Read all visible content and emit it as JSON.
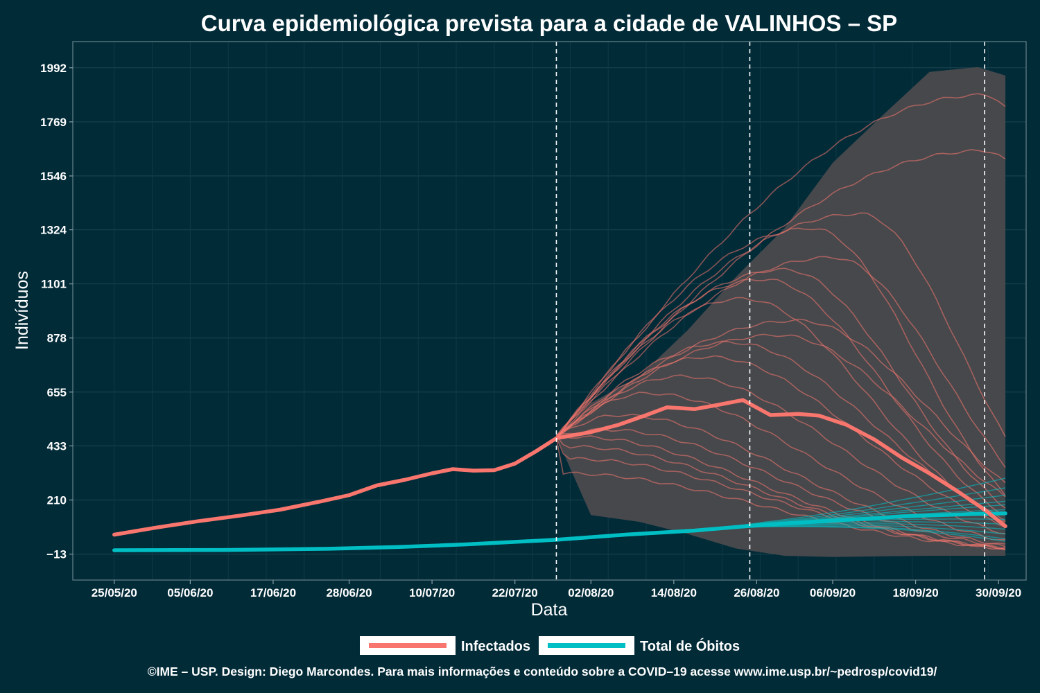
{
  "chart_data": {
    "type": "line",
    "title": "Curva epidemiológica prevista para a cidade de VALINHOS – SP",
    "xlabel": "Data",
    "ylabel": "Indivíduos",
    "caption": "©IME – USP. Design: Diego Marcondes. Para mais informações e conteúdo sobre a COVID–19 acesse www.ime.usp.br/~pedrosp/covid19/",
    "x_range": [
      "2020-05-19",
      "2020-10-04"
    ],
    "ylim": [
      -120,
      2100
    ],
    "x_ticks": [
      {
        "date": "2020-05-25",
        "label": "25/05/20"
      },
      {
        "date": "2020-06-05",
        "label": "05/06/20"
      },
      {
        "date": "2020-06-17",
        "label": "17/06/20"
      },
      {
        "date": "2020-06-28",
        "label": "28/06/20"
      },
      {
        "date": "2020-07-10",
        "label": "10/07/20"
      },
      {
        "date": "2020-07-22",
        "label": "22/07/20"
      },
      {
        "date": "2020-08-02",
        "label": "02/08/20"
      },
      {
        "date": "2020-08-14",
        "label": "14/08/20"
      },
      {
        "date": "2020-08-26",
        "label": "26/08/20"
      },
      {
        "date": "2020-09-06",
        "label": "06/09/20"
      },
      {
        "date": "2020-09-18",
        "label": "18/09/20"
      },
      {
        "date": "2020-09-30",
        "label": "30/09/20"
      }
    ],
    "y_ticks": [
      {
        "value": -13,
        "label": "−13"
      },
      {
        "value": 210,
        "label": "210"
      },
      {
        "value": 433,
        "label": "433"
      },
      {
        "value": 655,
        "label": "655"
      },
      {
        "value": 878,
        "label": "878"
      },
      {
        "value": 1101,
        "label": "1101"
      },
      {
        "value": 1324,
        "label": "1324"
      },
      {
        "value": 1546,
        "label": "1546"
      },
      {
        "value": 1769,
        "label": "1769"
      },
      {
        "value": 1992,
        "label": "1992"
      }
    ],
    "vlines": [
      "2020-07-28",
      "2020-08-25",
      "2020-09-28"
    ],
    "legend_position": "bottom",
    "grid": true,
    "series": [
      {
        "name": "Infectados",
        "color": "#f8766d",
        "points": [
          [
            "2020-05-25",
            67
          ],
          [
            "2020-05-31",
            96
          ],
          [
            "2020-06-06",
            122
          ],
          [
            "2020-06-12",
            145
          ],
          [
            "2020-06-18",
            170
          ],
          [
            "2020-06-24",
            205
          ],
          [
            "2020-06-28",
            230
          ],
          [
            "2020-07-02",
            270
          ],
          [
            "2020-07-06",
            293
          ],
          [
            "2020-07-10",
            320
          ],
          [
            "2020-07-13",
            337
          ],
          [
            "2020-07-16",
            331
          ],
          [
            "2020-07-19",
            333
          ],
          [
            "2020-07-22",
            360
          ],
          [
            "2020-07-25",
            410
          ],
          [
            "2020-07-28",
            465
          ],
          [
            "2020-08-02",
            490
          ],
          [
            "2020-08-06",
            520
          ],
          [
            "2020-08-10",
            560
          ],
          [
            "2020-08-13",
            592
          ],
          [
            "2020-08-17",
            585
          ],
          [
            "2020-08-20",
            600
          ],
          [
            "2020-08-24",
            622
          ],
          [
            "2020-08-28",
            560
          ],
          [
            "2020-09-01",
            565
          ],
          [
            "2020-09-04",
            558
          ],
          [
            "2020-09-08",
            520
          ],
          [
            "2020-09-12",
            460
          ],
          [
            "2020-09-16",
            385
          ],
          [
            "2020-09-20",
            320
          ],
          [
            "2020-09-24",
            247
          ],
          [
            "2020-09-28",
            170
          ],
          [
            "2020-10-01",
            102
          ]
        ]
      },
      {
        "name": "Total de Óbitos",
        "color": "#00bfc4",
        "points": [
          [
            "2020-05-25",
            3
          ],
          [
            "2020-06-10",
            4
          ],
          [
            "2020-06-25",
            9
          ],
          [
            "2020-07-05",
            16
          ],
          [
            "2020-07-15",
            27
          ],
          [
            "2020-07-28",
            46
          ],
          [
            "2020-08-07",
            67
          ],
          [
            "2020-08-17",
            84
          ],
          [
            "2020-08-27",
            108
          ],
          [
            "2020-09-06",
            125
          ],
          [
            "2020-09-16",
            142
          ],
          [
            "2020-09-26",
            152
          ],
          [
            "2020-10-01",
            155
          ]
        ]
      }
    ],
    "scenarios_infectados": {
      "band_upper": [
        [
          "2020-07-28",
          470
        ],
        [
          "2020-08-02",
          610
        ],
        [
          "2020-08-09",
          720
        ],
        [
          "2020-08-16",
          910
        ],
        [
          "2020-08-23",
          1130
        ],
        [
          "2020-08-30",
          1330
        ],
        [
          "2020-09-06",
          1600
        ],
        [
          "2020-09-13",
          1790
        ],
        [
          "2020-09-20",
          1975
        ],
        [
          "2020-09-27",
          1995
        ],
        [
          "2020-10-01",
          1960
        ]
      ],
      "band_lower": [
        [
          "2020-07-28",
          470
        ],
        [
          "2020-08-02",
          148
        ],
        [
          "2020-08-09",
          120
        ],
        [
          "2020-08-16",
          70
        ],
        [
          "2020-08-23",
          10
        ],
        [
          "2020-08-30",
          -20
        ],
        [
          "2020-09-06",
          -25
        ],
        [
          "2020-09-13",
          -22
        ],
        [
          "2020-09-20",
          -20
        ],
        [
          "2020-09-27",
          -20
        ],
        [
          "2020-10-01",
          -20
        ]
      ],
      "peaks": [
        [
          "2020-09-28",
          1880
        ],
        [
          "2020-09-28",
          1650
        ],
        [
          "2020-09-10",
          1390
        ],
        [
          "2020-09-03",
          1330
        ],
        [
          "2020-09-06",
          1210
        ],
        [
          "2020-08-30",
          1160
        ],
        [
          "2020-08-27",
          1120
        ],
        [
          "2020-08-24",
          1040
        ],
        [
          "2020-09-01",
          950
        ],
        [
          "2020-08-29",
          890
        ],
        [
          "2020-08-22",
          860
        ],
        [
          "2020-08-19",
          800
        ],
        [
          "2020-08-15",
          720
        ],
        [
          "2020-08-10",
          650
        ],
        [
          "2020-08-06",
          560
        ],
        [
          "2020-08-04",
          500
        ],
        [
          "2020-07-31",
          470
        ],
        [
          "2020-07-30",
          430
        ],
        [
          "2020-07-30",
          380
        ],
        [
          "2020-07-29",
          320
        ]
      ]
    },
    "scenarios_obitos": {
      "end_values": [
        300,
        260,
        230,
        205,
        190,
        170,
        150,
        130,
        110,
        90,
        70,
        50,
        40
      ]
    }
  }
}
